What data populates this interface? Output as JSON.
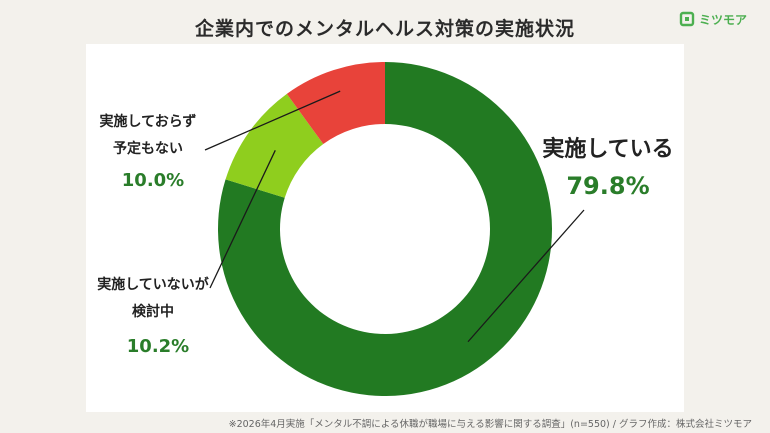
{
  "title": "企業内でのメンタルヘルス対策の実施状況",
  "brand": {
    "name": "ミツモア",
    "color": "#4caf50",
    "icon": "mitsumore-logo-icon"
  },
  "footnote": "※2026年4月実施「メンタル不調による休職が職場に与える影響に関する調査」(n=550) / グラフ作成：株式会社ミツモア",
  "chart_data": {
    "type": "pie",
    "style": "donut",
    "legend": "none",
    "categories": [
      "実施している",
      "実施していないが検討中",
      "実施しておらず予定もない"
    ],
    "values": [
      79.8,
      10.2,
      10.0
    ],
    "unit": "%",
    "colors": [
      "#227a22",
      "#8fce1e",
      "#e8433a"
    ],
    "data_labels": [
      {
        "label_lines": [
          "実施している"
        ],
        "value_text": "79.8%"
      },
      {
        "label_lines": [
          "実施していないが",
          "検討中"
        ],
        "value_text": "10.2%"
      },
      {
        "label_lines": [
          "実施しておらず",
          "予定もない"
        ],
        "value_text": "10.0%"
      }
    ]
  }
}
